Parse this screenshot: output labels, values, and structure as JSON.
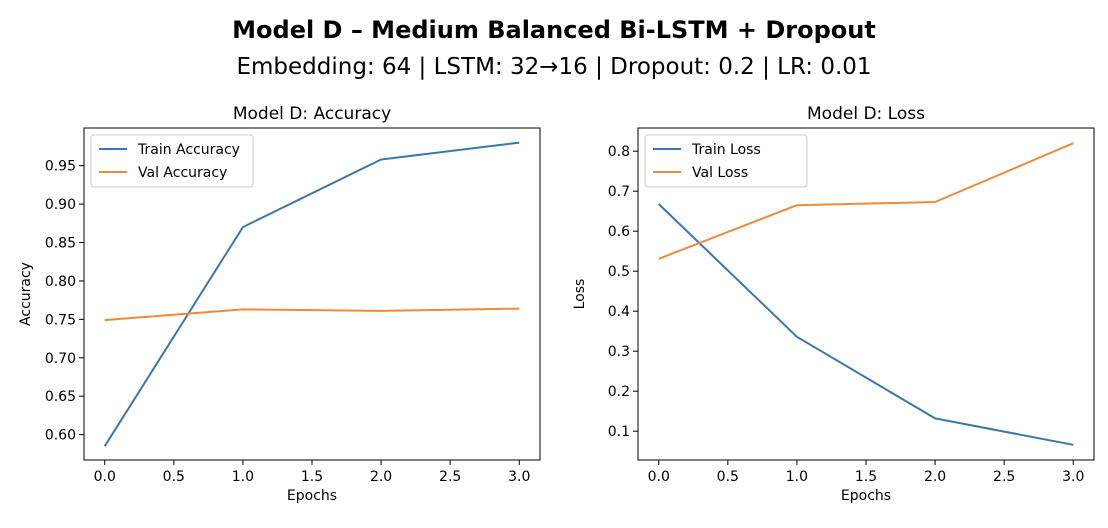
{
  "figure": {
    "title": "Model D – Medium Balanced Bi-LSTM + Dropout",
    "subtitle": "Embedding: 64 | LSTM: 32→16 | Dropout: 0.2 | LR: 0.01"
  },
  "colors": {
    "train": "#3a76b0",
    "val": "#f0893a"
  },
  "chart_data": [
    {
      "type": "line",
      "title": "Model D: Accuracy",
      "xlabel": "Epochs",
      "ylabel": "Accuracy",
      "x": [
        0,
        1,
        2,
        3
      ],
      "xlim": [
        -0.15,
        3.15
      ],
      "ylim": [
        0.567,
        0.999
      ],
      "xticks": [
        0.0,
        0.5,
        1.0,
        1.5,
        2.0,
        2.5,
        3.0
      ],
      "xtick_labels": [
        "0.0",
        "0.5",
        "1.0",
        "1.5",
        "2.0",
        "2.5",
        "3.0"
      ],
      "yticks": [
        0.6,
        0.65,
        0.7,
        0.75,
        0.8,
        0.85,
        0.9,
        0.95
      ],
      "ytick_labels": [
        "0.60",
        "0.65",
        "0.70",
        "0.75",
        "0.80",
        "0.85",
        "0.90",
        "0.95"
      ],
      "legend": "top-left",
      "grid": false,
      "series": [
        {
          "name": "Train Accuracy",
          "color": "#3a76b0",
          "values": [
            0.585,
            0.87,
            0.958,
            0.98
          ]
        },
        {
          "name": "Val Accuracy",
          "color": "#f0893a",
          "values": [
            0.749,
            0.763,
            0.761,
            0.764
          ]
        }
      ]
    },
    {
      "type": "line",
      "title": "Model D: Loss",
      "xlabel": "Epochs",
      "ylabel": "Loss",
      "x": [
        0,
        1,
        2,
        3
      ],
      "xlim": [
        -0.15,
        3.15
      ],
      "ylim": [
        0.028,
        0.858
      ],
      "xticks": [
        0.0,
        0.5,
        1.0,
        1.5,
        2.0,
        2.5,
        3.0
      ],
      "xtick_labels": [
        "0.0",
        "0.5",
        "1.0",
        "1.5",
        "2.0",
        "2.5",
        "3.0"
      ],
      "yticks": [
        0.1,
        0.2,
        0.3,
        0.4,
        0.5,
        0.6,
        0.7,
        0.8
      ],
      "ytick_labels": [
        "0.1",
        "0.2",
        "0.3",
        "0.4",
        "0.5",
        "0.6",
        "0.7",
        "0.8"
      ],
      "legend": "top-left",
      "grid": false,
      "series": [
        {
          "name": "Train Loss",
          "color": "#3a76b0",
          "values": [
            0.668,
            0.336,
            0.132,
            0.066
          ]
        },
        {
          "name": "Val Loss",
          "color": "#f0893a",
          "values": [
            0.531,
            0.665,
            0.673,
            0.82
          ]
        }
      ]
    }
  ]
}
